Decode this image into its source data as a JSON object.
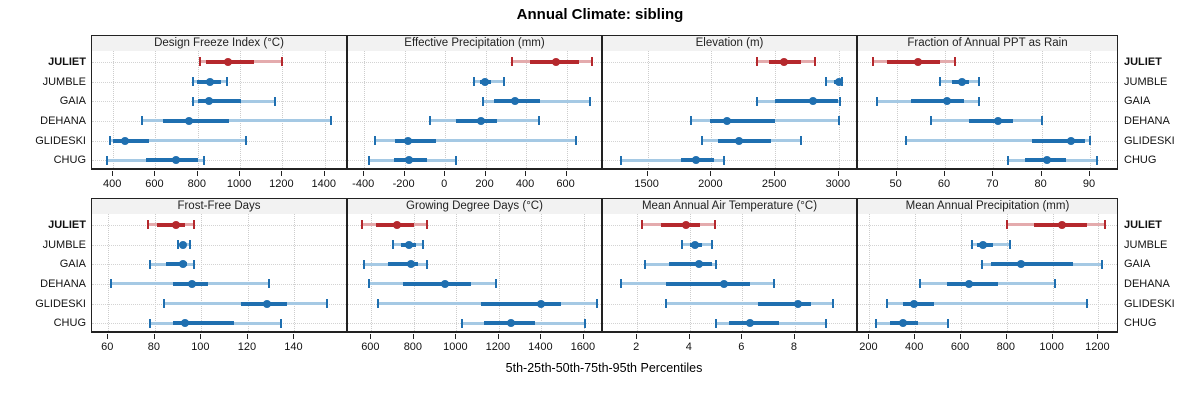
{
  "title": "Annual Climate: sibling",
  "caption": "5th-25th-50th-75th-95th Percentiles",
  "sites": [
    "JULIET",
    "JUMBLE",
    "GAIA",
    "DEHANA",
    "GLIDESKI",
    "CHUG"
  ],
  "highlight_site": "JULIET",
  "percentile_levels": [
    "5th",
    "25th",
    "50th",
    "75th",
    "95th"
  ],
  "colors": {
    "highlight": "#B5282D",
    "highlight_light": "#E4ABAD",
    "normal": "#1F6FB0",
    "normal_light": "#A5C9E4",
    "strip_bg": "#F2F2F2",
    "panel_border": "#222222",
    "gridline": "#CDCDCD"
  },
  "chart_data": [
    {
      "type": "scatter",
      "subtype": "percentile-errorbar-dotplot",
      "title": "Design Freeze Index (°C)",
      "xlim": [
        300,
        1510
      ],
      "xticks": [
        400,
        600,
        800,
        1000,
        1200,
        1400
      ],
      "series": [
        {
          "name": "JULIET",
          "percentiles": [
            810,
            840,
            945,
            1065,
            1200
          ]
        },
        {
          "name": "JUMBLE",
          "percentiles": [
            777,
            798,
            856,
            908,
            939
          ]
        },
        {
          "name": "GAIA",
          "percentiles": [
            776,
            800,
            853,
            1002,
            1167
          ]
        },
        {
          "name": "DEHANA",
          "percentiles": [
            538,
            637,
            758,
            947,
            1431
          ]
        },
        {
          "name": "GLIDESKI",
          "percentiles": [
            384,
            397,
            457,
            570,
            1029
          ]
        },
        {
          "name": "CHUG",
          "percentiles": [
            370,
            554,
            699,
            800,
            829
          ]
        }
      ]
    },
    {
      "type": "scatter",
      "subtype": "percentile-errorbar-dotplot",
      "title": "Effective Precipitation (mm)",
      "xlim": [
        -480,
        780
      ],
      "xticks": [
        -400,
        -200,
        0,
        200,
        400,
        600
      ],
      "series": [
        {
          "name": "JULIET",
          "percentiles": [
            330,
            420,
            548,
            660,
            728
          ]
        },
        {
          "name": "JUMBLE",
          "percentiles": [
            145,
            170,
            196,
            225,
            290
          ]
        },
        {
          "name": "GAIA",
          "percentiles": [
            185,
            240,
            345,
            470,
            718
          ]
        },
        {
          "name": "DEHANA",
          "percentiles": [
            -75,
            55,
            175,
            255,
            465
          ]
        },
        {
          "name": "GLIDESKI",
          "percentiles": [
            -345,
            -250,
            -185,
            -45,
            645
          ]
        },
        {
          "name": "CHUG",
          "percentiles": [
            -375,
            -255,
            -180,
            -90,
            55
          ]
        }
      ]
    },
    {
      "type": "scatter",
      "subtype": "percentile-errorbar-dotplot",
      "title": "Elevation (m)",
      "xlim": [
        1150,
        3150
      ],
      "xticks": [
        1500,
        2000,
        2500,
        3000
      ],
      "series": [
        {
          "name": "JULIET",
          "percentiles": [
            2360,
            2450,
            2570,
            2700,
            2810
          ]
        },
        {
          "name": "JUMBLE",
          "percentiles": [
            2900,
            2960,
            3000,
            3015,
            3025
          ]
        },
        {
          "name": "GAIA",
          "percentiles": [
            2360,
            2500,
            2800,
            2990,
            3010
          ]
        },
        {
          "name": "DEHANA",
          "percentiles": [
            1840,
            1990,
            2120,
            2500,
            3000
          ]
        },
        {
          "name": "GLIDESKI",
          "percentiles": [
            1930,
            2050,
            2220,
            2470,
            2700
          ]
        },
        {
          "name": "CHUG",
          "percentiles": [
            1290,
            1760,
            1880,
            2020,
            2100
          ]
        }
      ]
    },
    {
      "type": "scatter",
      "subtype": "percentile-errorbar-dotplot",
      "title": "Fraction of Annual PPT as Rain",
      "xlim": [
        42,
        96
      ],
      "xticks": [
        50,
        60,
        70,
        80,
        90
      ],
      "series": [
        {
          "name": "JULIET",
          "percentiles": [
            45,
            48,
            54.5,
            59,
            62
          ]
        },
        {
          "name": "JUMBLE",
          "percentiles": [
            59,
            61.5,
            63.5,
            65,
            67
          ]
        },
        {
          "name": "GAIA",
          "percentiles": [
            46,
            53,
            60.5,
            64,
            67
          ]
        },
        {
          "name": "DEHANA",
          "percentiles": [
            57,
            65,
            71,
            74,
            80
          ]
        },
        {
          "name": "GLIDESKI",
          "percentiles": [
            52,
            78,
            86,
            89,
            90
          ]
        },
        {
          "name": "CHUG",
          "percentiles": [
            73,
            76.5,
            81,
            85,
            91.5
          ]
        }
      ]
    },
    {
      "type": "scatter",
      "subtype": "percentile-errorbar-dotplot",
      "title": "Frost-Free Days",
      "xlim": [
        53,
        163
      ],
      "xticks": [
        60,
        80,
        100,
        120,
        140
      ],
      "series": [
        {
          "name": "JULIET",
          "percentiles": [
            77,
            81,
            89,
            93,
            97
          ]
        },
        {
          "name": "JUMBLE",
          "percentiles": [
            90,
            91,
            92,
            93.5,
            95
          ]
        },
        {
          "name": "GAIA",
          "percentiles": [
            78,
            85,
            92,
            94,
            97
          ]
        },
        {
          "name": "DEHANA",
          "percentiles": [
            61,
            88,
            96,
            103,
            129
          ]
        },
        {
          "name": "GLIDESKI",
          "percentiles": [
            84,
            117,
            128,
            137,
            154
          ]
        },
        {
          "name": "CHUG",
          "percentiles": [
            78,
            88,
            93,
            114,
            134
          ]
        }
      ]
    },
    {
      "type": "scatter",
      "subtype": "percentile-errorbar-dotplot",
      "title": "Growing Degree Days (°C)",
      "xlim": [
        490,
        1690
      ],
      "xticks": [
        600,
        800,
        1000,
        1200,
        1400,
        1600
      ],
      "series": [
        {
          "name": "JULIET",
          "percentiles": [
            555,
            620,
            720,
            800,
            860
          ]
        },
        {
          "name": "JUMBLE",
          "percentiles": [
            700,
            740,
            775,
            810,
            845
          ]
        },
        {
          "name": "GAIA",
          "percentiles": [
            565,
            680,
            785,
            820,
            860
          ]
        },
        {
          "name": "DEHANA",
          "percentiles": [
            590,
            750,
            945,
            1070,
            1185
          ]
        },
        {
          "name": "GLIDESKI",
          "percentiles": [
            630,
            1115,
            1400,
            1490,
            1660
          ]
        },
        {
          "name": "CHUG",
          "percentiles": [
            1025,
            1130,
            1255,
            1370,
            1605
          ]
        }
      ]
    },
    {
      "type": "scatter",
      "subtype": "percentile-errorbar-dotplot",
      "title": "Mean Annual Air Temperature (°C)",
      "xlim": [
        0.7,
        10.4
      ],
      "xticks": [
        2,
        4,
        6,
        8
      ],
      "series": [
        {
          "name": "JULIET",
          "percentiles": [
            2.2,
            2.9,
            3.85,
            4.4,
            4.95
          ]
        },
        {
          "name": "JUMBLE",
          "percentiles": [
            3.7,
            4.0,
            4.2,
            4.45,
            4.85
          ]
        },
        {
          "name": "GAIA",
          "percentiles": [
            2.3,
            3.2,
            4.35,
            4.85,
            5.0
          ]
        },
        {
          "name": "DEHANA",
          "percentiles": [
            1.4,
            3.1,
            5.3,
            6.3,
            7.2
          ]
        },
        {
          "name": "GLIDESKI",
          "percentiles": [
            3.1,
            6.6,
            8.1,
            8.6,
            9.45
          ]
        },
        {
          "name": "CHUG",
          "percentiles": [
            5.0,
            5.5,
            6.3,
            7.4,
            9.2
          ]
        }
      ]
    },
    {
      "type": "scatter",
      "subtype": "percentile-errorbar-dotplot",
      "title": "Mean Annual Precipitation (mm)",
      "xlim": [
        150,
        1290
      ],
      "xticks": [
        200,
        400,
        600,
        800,
        1000,
        1200
      ],
      "series": [
        {
          "name": "JULIET",
          "percentiles": [
            800,
            920,
            1040,
            1150,
            1230
          ]
        },
        {
          "name": "JUMBLE",
          "percentiles": [
            650,
            670,
            695,
            740,
            815
          ]
        },
        {
          "name": "GAIA",
          "percentiles": [
            690,
            730,
            860,
            1090,
            1215
          ]
        },
        {
          "name": "DEHANA",
          "percentiles": [
            420,
            540,
            635,
            760,
            1010
          ]
        },
        {
          "name": "GLIDESKI",
          "percentiles": [
            275,
            345,
            395,
            480,
            1150
          ]
        },
        {
          "name": "CHUG",
          "percentiles": [
            230,
            290,
            345,
            410,
            545
          ]
        }
      ]
    }
  ]
}
